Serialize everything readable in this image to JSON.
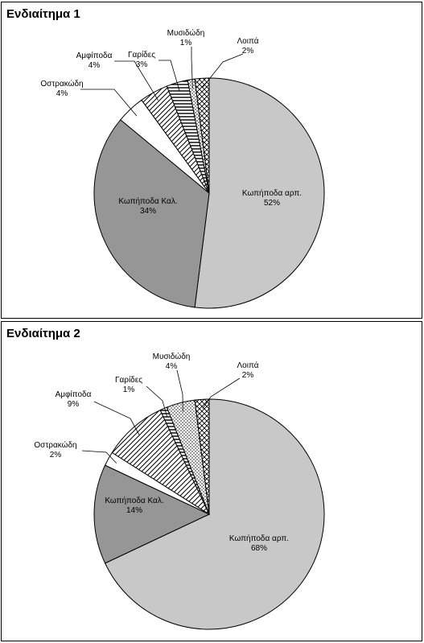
{
  "chart_data": [
    {
      "type": "pie",
      "title": "Ενδιαίτημα 1",
      "slices": [
        {
          "label": "Κωπήποδα αρπ.",
          "value": 52,
          "value_label": "52%",
          "pattern": "light-gray"
        },
        {
          "label": "Κωπήποδα Καλ.",
          "value": 34,
          "value_label": "34%",
          "pattern": "dark-gray"
        },
        {
          "label": "Οστρακώδη",
          "value": 4,
          "value_label": "4%",
          "pattern": "white"
        },
        {
          "label": "Αμφίποδα",
          "value": 4,
          "value_label": "4%",
          "pattern": "diagonal-hatch"
        },
        {
          "label": "Γαρίδες",
          "value": 3,
          "value_label": "3%",
          "pattern": "horizontal-lines"
        },
        {
          "label": "Μυσιδώδη",
          "value": 1,
          "value_label": "1%",
          "pattern": "dots"
        },
        {
          "label": "Λοιπά",
          "value": 2,
          "value_label": "2%",
          "pattern": "crosshatch"
        }
      ]
    },
    {
      "type": "pie",
      "title": "Ενδιαίτημα 2",
      "slices": [
        {
          "label": "Κωπήποδα αρπ.",
          "value": 68,
          "value_label": "68%",
          "pattern": "light-gray"
        },
        {
          "label": "Κωπήποδα Καλ.",
          "value": 14,
          "value_label": "14%",
          "pattern": "dark-gray"
        },
        {
          "label": "Οστρακώδη",
          "value": 2,
          "value_label": "2%",
          "pattern": "white"
        },
        {
          "label": "Αμφίποδα",
          "value": 9,
          "value_label": "9%",
          "pattern": "diagonal-hatch"
        },
        {
          "label": "Γαρίδες",
          "value": 1,
          "value_label": "1%",
          "pattern": "horizontal-lines"
        },
        {
          "label": "Μυσιδώδη",
          "value": 4,
          "value_label": "4%",
          "pattern": "dots"
        },
        {
          "label": "Λοιπά",
          "value": 2,
          "value_label": "2%",
          "pattern": "crosshatch"
        }
      ]
    }
  ],
  "colors": {
    "light-gray": "#c8c8c8",
    "dark-gray": "#969696",
    "white": "#ffffff",
    "stroke": "#000000"
  }
}
